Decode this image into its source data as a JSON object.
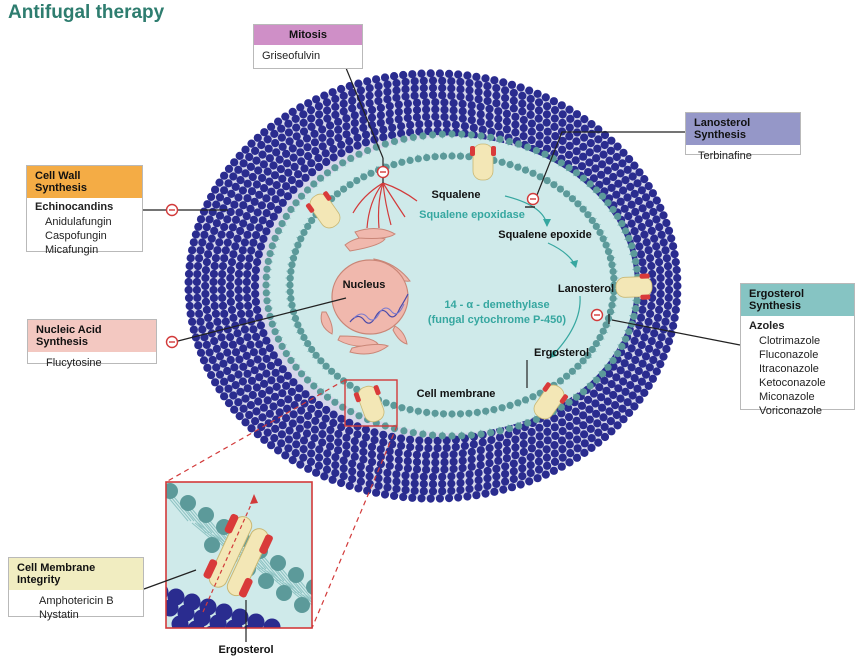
{
  "title": "Antifugal therapy",
  "colors": {
    "title": "#2e7d6f",
    "teal_label": "#36a7a0",
    "cell_wall_dot": "#2a2c8f",
    "cytoplasm": "#cfeaea",
    "membrane_head": "#5c9a9a",
    "nucleus": "#f0b8ad",
    "protein": "#f3e7b6",
    "protein_cap": "#d93a3a",
    "inhibit": "#d23a3a",
    "zoom_border": "#d23a3a",
    "mitosis_header": "#cf8fc7",
    "lanosterol_header": "#9597c8",
    "cellwall_header": "#f4ac45",
    "nucleic_header": "#f3c8c1",
    "ergosterol_header": "#86c4c3",
    "membrane_header": "#f1edc1"
  },
  "boxes": {
    "mitosis": {
      "header": "Mitosis",
      "items": [
        "Griseofulvin"
      ]
    },
    "lanosterol": {
      "header": "Lanosterol Synthesis",
      "items": [
        "Terbinafine"
      ]
    },
    "cell_wall": {
      "header": "Cell Wall Synthesis",
      "subheader": "Echinocandins",
      "items": [
        "Anidulafungin",
        "Caspofungin",
        "Micafungin"
      ]
    },
    "nucleic_acid": {
      "header": "Nucleic Acid Synthesis",
      "items": [
        "Flucytosine"
      ]
    },
    "ergosterol": {
      "header": "Ergosterol Synthesis",
      "subheader": "Azoles",
      "items": [
        "Clotrimazole",
        "Fluconazole",
        "Itraconazole",
        "Ketoconazole",
        "Miconazole",
        "Voriconazole"
      ]
    },
    "membrane": {
      "header": "Cell Membrane Integrity",
      "items": [
        "Amphotericin B",
        "Nystatin"
      ]
    }
  },
  "labels": {
    "nucleus": "Nucleus",
    "squalene": "Squalene",
    "squalene_epoxidase": "Squalene epoxidase",
    "squalene_epoxide": "Squalene epoxide",
    "lanosterol": "Lanosterol",
    "demethylase_1": "14 - α - demethylase",
    "demethylase_2": "(fungal cytochrome P-450)",
    "ergosterol": "Ergosterol",
    "cell_membrane": "Cell membrane",
    "ergosterol_bottom": "Ergosterol"
  }
}
